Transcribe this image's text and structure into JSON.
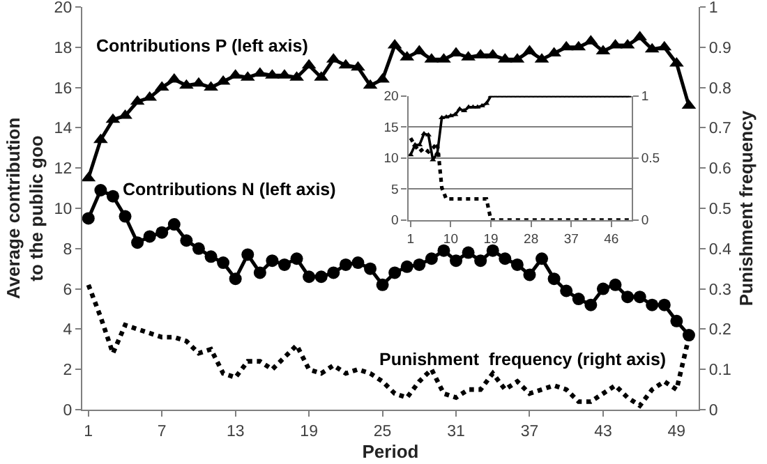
{
  "chart_data": [
    {
      "type": "line",
      "xlabel": "Period",
      "ylabel": "Average contribution\nto the public goo",
      "y2label": "Punishment frequency",
      "x": [
        1,
        2,
        3,
        4,
        5,
        6,
        7,
        8,
        9,
        10,
        11,
        12,
        13,
        14,
        15,
        16,
        17,
        18,
        19,
        20,
        21,
        22,
        23,
        24,
        25,
        26,
        27,
        28,
        29,
        30,
        31,
        32,
        33,
        34,
        35,
        36,
        37,
        38,
        39,
        40,
        41,
        42,
        43,
        44,
        45,
        46,
        47,
        48,
        49,
        50
      ],
      "xlim": [
        0.5,
        50.8
      ],
      "xticks": [
        1,
        7,
        13,
        19,
        25,
        31,
        37,
        43,
        49
      ],
      "ylim": [
        0,
        20
      ],
      "yticks": [
        0,
        2,
        4,
        6,
        8,
        10,
        12,
        14,
        16,
        18,
        20
      ],
      "y2lim": [
        0,
        1
      ],
      "y2ticks": [
        0,
        0.1,
        0.2,
        0.3,
        0.4,
        0.5,
        0.6,
        0.7,
        0.8,
        0.9,
        1
      ],
      "grid": false,
      "legend": false,
      "series": [
        {
          "name": "Contributions P (left axis)",
          "color": "#000000",
          "marker": "triangle",
          "line_style": "solid",
          "values": [
            11.5,
            13.4,
            14.4,
            14.6,
            15.3,
            15.5,
            16.0,
            16.4,
            16.1,
            16.2,
            16.0,
            16.3,
            16.6,
            16.5,
            16.7,
            16.6,
            16.6,
            16.5,
            17.1,
            16.5,
            17.4,
            17.1,
            17.0,
            16.1,
            16.4,
            18.1,
            17.5,
            17.8,
            17.4,
            17.4,
            17.7,
            17.5,
            17.6,
            17.6,
            17.4,
            17.4,
            17.8,
            17.4,
            17.7,
            18.0,
            18.0,
            18.3,
            17.8,
            18.1,
            18.1,
            18.5,
            17.9,
            18.0,
            17.2,
            15.1
          ]
        },
        {
          "name": "Contributions N (left axis)",
          "color": "#000000",
          "marker": "circle",
          "line_style": "solid",
          "values": [
            9.5,
            10.9,
            10.6,
            9.6,
            8.3,
            8.6,
            8.8,
            9.2,
            8.4,
            8.0,
            7.6,
            7.3,
            6.5,
            7.7,
            6.8,
            7.4,
            7.2,
            7.5,
            6.6,
            6.6,
            6.8,
            7.2,
            7.3,
            7.0,
            6.2,
            6.8,
            7.1,
            7.2,
            7.5,
            7.9,
            7.4,
            7.8,
            7.4,
            7.9,
            7.5,
            7.2,
            6.7,
            7.5,
            6.5,
            5.9,
            5.5,
            5.2,
            6.0,
            6.2,
            5.6,
            5.6,
            5.2,
            5.2,
            4.4,
            3.7
          ]
        },
        {
          "name": "Punishment  frequency (right axis)",
          "color": "#000000",
          "marker": "none",
          "line_style": "dotted",
          "axis": "y2",
          "values": [
            0.31,
            0.23,
            0.14,
            0.21,
            0.2,
            0.19,
            0.18,
            0.18,
            0.17,
            0.14,
            0.15,
            0.09,
            0.08,
            0.12,
            0.12,
            0.1,
            0.13,
            0.16,
            0.1,
            0.09,
            0.11,
            0.09,
            0.1,
            0.09,
            0.07,
            0.04,
            0.03,
            0.07,
            0.1,
            0.04,
            0.03,
            0.05,
            0.05,
            0.09,
            0.05,
            0.07,
            0.04,
            0.05,
            0.06,
            0.05,
            0.02,
            0.02,
            0.04,
            0.06,
            0.03,
            0.01,
            0.05,
            0.07,
            0.05,
            0.18
          ]
        }
      ]
    },
    {
      "type": "line",
      "x": [
        1,
        2,
        3,
        4,
        5,
        6,
        7,
        8,
        9,
        10,
        11,
        12,
        13,
        14,
        15,
        16,
        17,
        18,
        19,
        20,
        21,
        22,
        23,
        24,
        25,
        26,
        27,
        28,
        29,
        30,
        31,
        32,
        33,
        34,
        35,
        36,
        37,
        38,
        39,
        40,
        41,
        42,
        43,
        44,
        45,
        46,
        47,
        48,
        49,
        50
      ],
      "xlim": [
        0.5,
        50.5
      ],
      "xticks": [
        1,
        10,
        19,
        28,
        37,
        46
      ],
      "ylim": [
        0,
        20
      ],
      "yticks": [
        0,
        5,
        10,
        15,
        20
      ],
      "y2lim": [
        0,
        1
      ],
      "y2ticks": [
        0,
        0.5,
        1
      ],
      "grid": "y",
      "legend": false,
      "series": [
        {
          "color": "#000000",
          "marker": "triangle",
          "line_style": "solid",
          "values": [
            10.5,
            12.1,
            12.1,
            13.9,
            13.7,
            9.7,
            10.8,
            16.5,
            16.6,
            16.8,
            17.0,
            17.9,
            17.6,
            18.2,
            18.2,
            18.2,
            18.4,
            18.8,
            20,
            20,
            20,
            20,
            20,
            20,
            20,
            20,
            20,
            20,
            20,
            20,
            20,
            20,
            20,
            20,
            20,
            20,
            20,
            20,
            20,
            20,
            20,
            20,
            20,
            20,
            20,
            20,
            20,
            20,
            20,
            20
          ]
        },
        {
          "color": "#000000",
          "marker": "none",
          "line_style": "dotted",
          "axis": "y2",
          "values": [
            0.66,
            0.6,
            0.55,
            0.58,
            0.55,
            0.58,
            0.62,
            0.26,
            0.17,
            0.17,
            0.17,
            0.17,
            0.17,
            0.17,
            0.17,
            0.17,
            0.17,
            0.17,
            0,
            0,
            0,
            0,
            0,
            0,
            0,
            0,
            0,
            0,
            0,
            0,
            0,
            0,
            0,
            0,
            0,
            0,
            0,
            0,
            0,
            0,
            0,
            0,
            0,
            0,
            0,
            0,
            0,
            0,
            0,
            0
          ]
        }
      ]
    }
  ]
}
